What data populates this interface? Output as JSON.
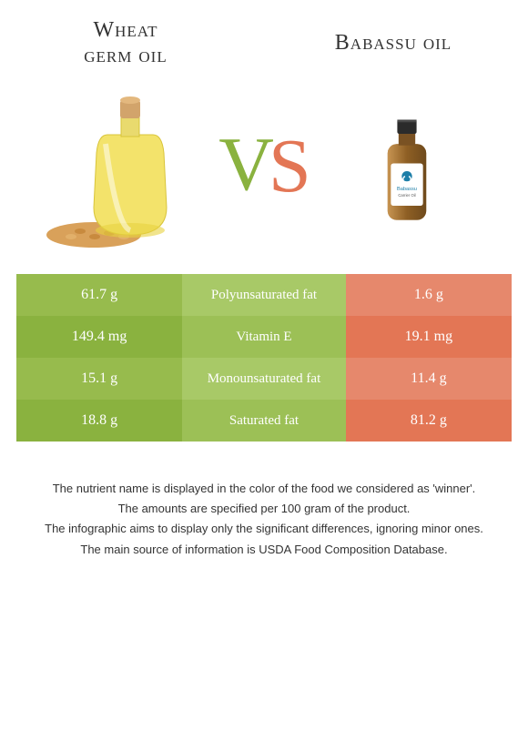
{
  "header": {
    "left_title_line1": "Wheat",
    "left_title_line2": "germ oil",
    "right_title": "Babassu oil"
  },
  "vs": {
    "v": "V",
    "s": "S"
  },
  "colors": {
    "left_a": "#97bb4d",
    "left_b": "#8ab23f",
    "mid_a": "#a8c967",
    "mid_b": "#9cc056",
    "right_a": "#e6886c",
    "right_b": "#e37655",
    "winner_left": "#8ab23f",
    "winner_right": "#e37655"
  },
  "rows": [
    {
      "left": "61.7 g",
      "mid": "Polyunsaturated fat",
      "right": "1.6 g",
      "winner": "left"
    },
    {
      "left": "149.4 mg",
      "mid": "Vitamin E",
      "right": "19.1 mg",
      "winner": "left"
    },
    {
      "left": "15.1 g",
      "mid": "Monounsaturated fat",
      "right": "11.4 g",
      "winner": "left"
    },
    {
      "left": "18.8 g",
      "mid": "Saturated fat",
      "right": "81.2 g",
      "winner": "right"
    }
  ],
  "footer": {
    "p1": "The nutrient name is displayed in the color of the food we considered as 'winner'.",
    "p2": "The amounts are specified per 100 gram of the product.",
    "p3": "The infographic aims to display only the significant differences, ignoring minor ones.",
    "p4": "The main source of information is USDA Food Composition Database."
  },
  "img": {
    "left_alt": "wheat-germ-oil-bottle",
    "right_alt": "babassu-oil-bottle"
  }
}
